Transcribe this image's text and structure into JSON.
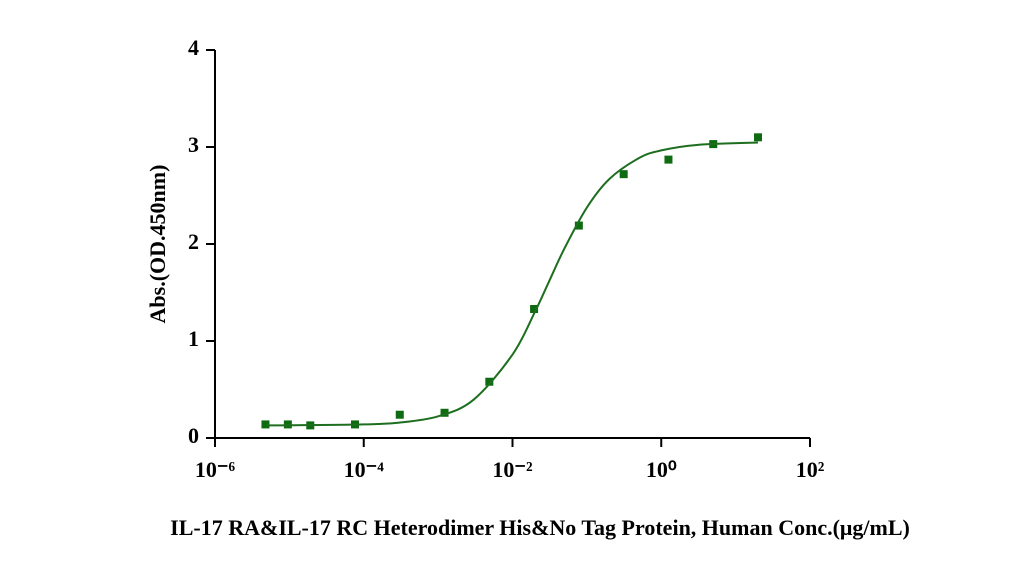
{
  "chart_data": {
    "type": "scatter",
    "xlabel": "IL-17 RA&IL-17 RC Heterodimer His&No Tag Protein, Human Conc.(μg/mL)",
    "ylabel": "Abs.(OD.450nm)",
    "xscale": "log",
    "xlim": [
      1e-06,
      100
    ],
    "ylim": [
      0,
      4
    ],
    "xticks": [
      {
        "value": 1e-06,
        "label": "10⁻⁶"
      },
      {
        "value": 0.0001,
        "label": "10⁻⁴"
      },
      {
        "value": 0.01,
        "label": "10⁻²"
      },
      {
        "value": 1,
        "label": "10⁰"
      },
      {
        "value": 100,
        "label": "10²"
      }
    ],
    "yticks": [
      0,
      1,
      2,
      3,
      4
    ],
    "series": [
      {
        "type": "scatter",
        "color": "#0f6b12",
        "x": [
          4.77e-06,
          9.54e-06,
          1.91e-05,
          7.63e-05,
          0.000305,
          0.00122,
          0.00488,
          0.0195,
          0.078,
          0.3125,
          1.25,
          5,
          20
        ],
        "values": [
          0.14,
          0.14,
          0.13,
          0.14,
          0.24,
          0.26,
          0.58,
          1.33,
          2.19,
          2.72,
          2.87,
          3.03,
          3.1
        ]
      },
      {
        "type": "line",
        "color": "#1d6e1f",
        "x": [
          5e-06,
          1e-05,
          0.0001,
          0.0003,
          0.001,
          0.003,
          0.01,
          0.02,
          0.03,
          0.05,
          0.1,
          0.2,
          0.5,
          1,
          3,
          20
        ],
        "values": [
          0.13,
          0.131,
          0.14,
          0.159,
          0.224,
          0.395,
          0.86,
          1.3,
          1.59,
          1.955,
          2.376,
          2.669,
          2.885,
          2.965,
          3.021,
          3.046
        ]
      }
    ]
  }
}
